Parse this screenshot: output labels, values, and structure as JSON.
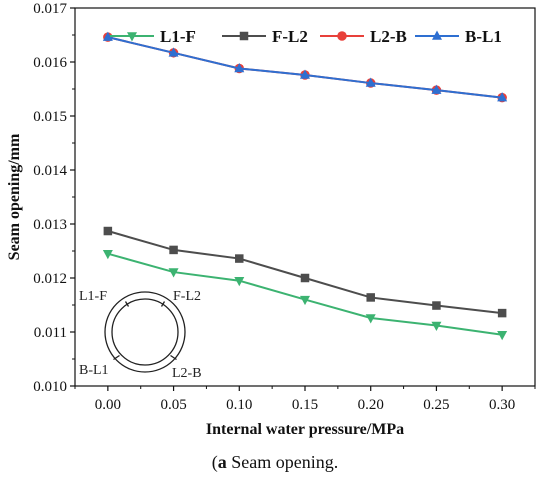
{
  "caption": {
    "tag": "a",
    "text": " Seam opening."
  },
  "chart_data": {
    "type": "line",
    "xlabel": "Internal water pressure/MPa",
    "ylabel": "Seam opening/mm",
    "xlim": [
      -0.025,
      0.325
    ],
    "ylim": [
      0.01,
      0.017
    ],
    "x": [
      0.0,
      0.05,
      0.1,
      0.15,
      0.2,
      0.25,
      0.3
    ],
    "x_tick_labels": [
      "0.00",
      "0.05",
      "0.10",
      "0.15",
      "0.20",
      "0.25",
      "0.30"
    ],
    "y_ticks": [
      0.01,
      0.011,
      0.012,
      0.013,
      0.014,
      0.015,
      0.016,
      0.017
    ],
    "y_tick_labels": [
      "0.010",
      "0.011",
      "0.012",
      "0.013",
      "0.014",
      "0.015",
      "0.016",
      "0.017"
    ],
    "grid": false,
    "legend_position": "top",
    "series": [
      {
        "name": "L1-F",
        "color": "#3cb371",
        "marker": "triangle-down",
        "values": [
          0.01245,
          0.01211,
          0.01195,
          0.0116,
          0.01126,
          0.01112,
          0.01095
        ]
      },
      {
        "name": "F-L2",
        "color": "#4d4d4d",
        "marker": "square",
        "values": [
          0.01287,
          0.01252,
          0.01236,
          0.012,
          0.01164,
          0.01149,
          0.01135
        ]
      },
      {
        "name": "L2-B",
        "color": "#e8403a",
        "marker": "circle",
        "values": [
          0.01646,
          0.01617,
          0.01588,
          0.01576,
          0.01561,
          0.01548,
          0.01534
        ]
      },
      {
        "name": "B-L1",
        "color": "#2e6fd1",
        "marker": "triangle-up",
        "values": [
          0.01646,
          0.01617,
          0.01588,
          0.01576,
          0.01561,
          0.01548,
          0.01534
        ]
      }
    ],
    "inset_labels": [
      "L1-F",
      "F-L2",
      "B-L1",
      "L2-B"
    ]
  }
}
